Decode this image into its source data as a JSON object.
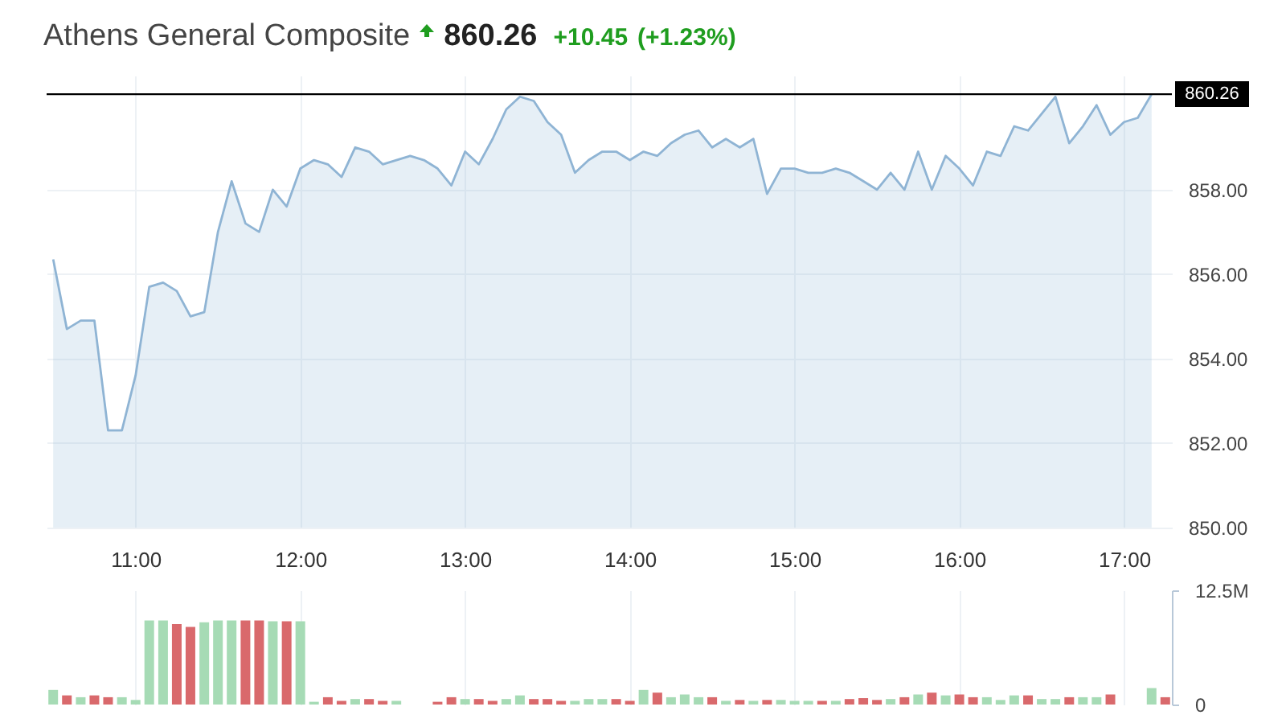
{
  "chart_data": [
    {
      "type": "area",
      "title": "Athens General Composite",
      "annotations": [
        "860.26",
        "+10.45",
        "(+1.23%)"
      ],
      "x": [
        10.5,
        10.583,
        10.667,
        10.75,
        10.833,
        10.917,
        11,
        11.083,
        11.167,
        11.25,
        11.333,
        11.417,
        11.5,
        11.583,
        11.667,
        11.75,
        11.833,
        11.917,
        12,
        12.083,
        12.167,
        12.25,
        12.333,
        12.417,
        12.5,
        12.583,
        12.667,
        12.75,
        12.833,
        12.917,
        13,
        13.083,
        13.167,
        13.25,
        13.333,
        13.417,
        13.5,
        13.583,
        13.667,
        13.75,
        13.833,
        13.917,
        14,
        14.083,
        14.167,
        14.25,
        14.333,
        14.417,
        14.5,
        14.583,
        14.667,
        14.75,
        14.833,
        14.917,
        15,
        15.083,
        15.167,
        15.25,
        15.333,
        15.417,
        15.5,
        15.583,
        15.667,
        15.75,
        15.833,
        15.917,
        16,
        16.083,
        16.167,
        16.25,
        16.333,
        16.417,
        16.5,
        16.583,
        16.667,
        16.75,
        16.833,
        16.917,
        17,
        17.083,
        17.167
      ],
      "series": [
        {
          "color": "#8fb4d4",
          "values": [
            856.35,
            854.7,
            854.9,
            854.9,
            852.3,
            852.3,
            853.6,
            855.7,
            855.8,
            855.6,
            855.0,
            855.1,
            857.0,
            858.2,
            857.2,
            857.0,
            858.0,
            857.6,
            858.5,
            858.7,
            858.6,
            858.3,
            859.0,
            858.9,
            858.6,
            858.7,
            858.8,
            858.7,
            858.5,
            858.1,
            858.9,
            858.6,
            859.2,
            859.9,
            860.2,
            860.1,
            859.6,
            859.3,
            858.4,
            858.7,
            858.9,
            858.9,
            858.7,
            858.9,
            858.8,
            859.1,
            859.3,
            859.4,
            859.0,
            859.2,
            859.0,
            859.2,
            857.9,
            858.5,
            858.5,
            858.4,
            858.4,
            858.5,
            858.4,
            858.2,
            858.0,
            858.4,
            858.0,
            858.9,
            858.0,
            858.8,
            858.5,
            858.1,
            858.9,
            858.8,
            859.5,
            859.4,
            859.8,
            860.2,
            859.1,
            859.5,
            860.0,
            859.3,
            859.6,
            859.7,
            860.26
          ]
        }
      ],
      "xlim": [
        10.46,
        17.29
      ],
      "xticks": [
        {
          "value": 11,
          "label": "11:00"
        },
        {
          "value": 12,
          "label": "12:00"
        },
        {
          "value": 13,
          "label": "13:00"
        },
        {
          "value": 14,
          "label": "14:00"
        },
        {
          "value": 15,
          "label": "15:00"
        },
        {
          "value": 16,
          "label": "16:00"
        },
        {
          "value": 17,
          "label": "17:00"
        }
      ],
      "ylim": [
        850,
        860.7
      ],
      "yticks": [
        {
          "value": 850,
          "label": "850.00"
        },
        {
          "value": 852,
          "label": "852.00"
        },
        {
          "value": 854,
          "label": "854.00"
        },
        {
          "value": 856,
          "label": "856.00"
        },
        {
          "value": 858,
          "label": "858.00"
        }
      ],
      "grid": true,
      "ref_lines": [
        {
          "axis": "y",
          "value": 860.26,
          "label": "860.26",
          "color": "#000000"
        }
      ]
    },
    {
      "type": "bar",
      "x": [
        10.5,
        10.583,
        10.667,
        10.75,
        10.833,
        10.917,
        11,
        11.083,
        11.167,
        11.25,
        11.333,
        11.417,
        11.5,
        11.583,
        11.667,
        11.75,
        11.833,
        11.917,
        12,
        12.083,
        12.167,
        12.25,
        12.333,
        12.417,
        12.5,
        12.583,
        12.833,
        12.917,
        13,
        13.083,
        13.167,
        13.25,
        13.333,
        13.417,
        13.5,
        13.583,
        13.667,
        13.75,
        13.833,
        13.917,
        14,
        14.083,
        14.167,
        14.25,
        14.333,
        14.417,
        14.5,
        14.583,
        14.667,
        14.75,
        14.833,
        14.917,
        15,
        15.083,
        15.167,
        15.25,
        15.333,
        15.417,
        15.5,
        15.583,
        15.667,
        15.75,
        15.833,
        15.917,
        16,
        16.083,
        16.167,
        16.25,
        16.333,
        16.417,
        16.5,
        16.583,
        16.667,
        16.75,
        16.833,
        16.917,
        17.167,
        17.25
      ],
      "values": [
        1.6,
        1.0,
        0.8,
        1.0,
        0.8,
        0.8,
        0.5,
        9.2,
        9.2,
        8.8,
        8.5,
        9.0,
        9.2,
        9.2,
        9.2,
        9.2,
        9.1,
        9.1,
        9.1,
        0.3,
        0.8,
        0.4,
        0.6,
        0.6,
        0.4,
        0.4,
        0.3,
        0.8,
        0.6,
        0.6,
        0.4,
        0.6,
        1.0,
        0.6,
        0.6,
        0.4,
        0.4,
        0.6,
        0.6,
        0.6,
        0.4,
        1.6,
        1.3,
        0.8,
        1.1,
        0.8,
        0.8,
        0.4,
        0.5,
        0.4,
        0.5,
        0.5,
        0.4,
        0.4,
        0.4,
        0.4,
        0.6,
        0.7,
        0.5,
        0.6,
        0.8,
        1.1,
        1.3,
        1.0,
        1.1,
        0.8,
        0.8,
        0.5,
        1.0,
        1.0,
        0.6,
        0.6,
        0.8,
        0.8,
        0.8,
        1.1,
        1.8,
        0.8
      ],
      "colors": [
        "#a6dbb5",
        "#d9696c",
        "#a6dbb5",
        "#d9696c",
        "#d9696c",
        "#a6dbb5",
        "#a6dbb5",
        "#a6dbb5",
        "#a6dbb5",
        "#d9696c",
        "#d9696c",
        "#a6dbb5",
        "#a6dbb5",
        "#a6dbb5",
        "#d9696c",
        "#d9696c",
        "#a6dbb5",
        "#d9696c",
        "#a6dbb5",
        "#a6dbb5",
        "#d9696c",
        "#d9696c",
        "#a6dbb5",
        "#d9696c",
        "#d9696c",
        "#a6dbb5",
        "#d9696c",
        "#d9696c",
        "#a6dbb5",
        "#d9696c",
        "#d9696c",
        "#a6dbb5",
        "#a6dbb5",
        "#d9696c",
        "#d9696c",
        "#d9696c",
        "#a6dbb5",
        "#a6dbb5",
        "#a6dbb5",
        "#d9696c",
        "#d9696c",
        "#a6dbb5",
        "#d9696c",
        "#a6dbb5",
        "#a6dbb5",
        "#a6dbb5",
        "#d9696c",
        "#a6dbb5",
        "#d9696c",
        "#a6dbb5",
        "#d9696c",
        "#a6dbb5",
        "#a6dbb5",
        "#a6dbb5",
        "#d9696c",
        "#a6dbb5",
        "#d9696c",
        "#d9696c",
        "#d9696c",
        "#a6dbb5",
        "#d9696c",
        "#a6dbb5",
        "#d9696c",
        "#a6dbb5",
        "#d9696c",
        "#d9696c",
        "#a6dbb5",
        "#a6dbb5",
        "#a6dbb5",
        "#d9696c",
        "#a6dbb5",
        "#a6dbb5",
        "#d9696c",
        "#a6dbb5",
        "#a6dbb5",
        "#d9696c",
        "#a6dbb5",
        "#d9696c"
      ],
      "xlim": [
        10.46,
        17.29
      ],
      "xticks": [
        11,
        12,
        13,
        14,
        15,
        16,
        17
      ],
      "ylim": [
        0,
        12.5
      ],
      "yticks": [
        0,
        {
          "value": 12.5,
          "label": "12.5M"
        }
      ],
      "grid": "x",
      "tick_labels": "y"
    }
  ]
}
